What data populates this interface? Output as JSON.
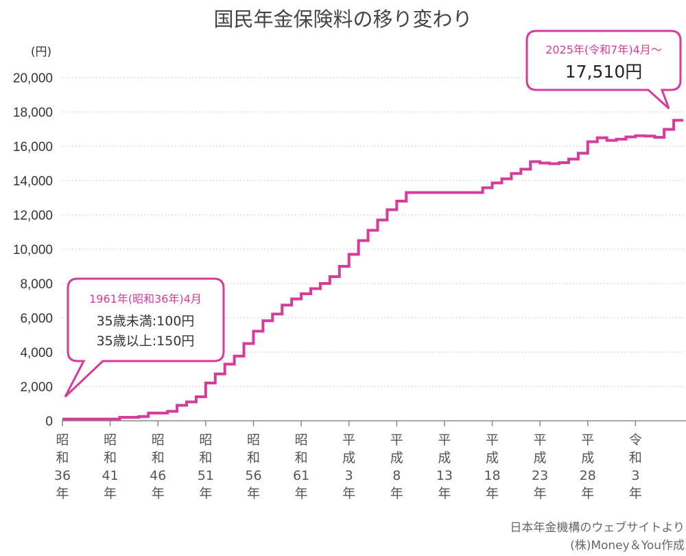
{
  "chart_data": {
    "type": "line",
    "title": "国民年金保険料の移り変わり",
    "ylabel": "(円)",
    "ylim": [
      0,
      20000
    ],
    "yticks": [
      0,
      2000,
      4000,
      6000,
      8000,
      10000,
      12000,
      14000,
      16000,
      18000,
      20000
    ],
    "ytick_labels": [
      "0",
      "2,000",
      "4,000",
      "6,000",
      "8,000",
      "10,000",
      "12,000",
      "14,000",
      "16,000",
      "18,000",
      "20,000"
    ],
    "xlim": [
      1961,
      2026
    ],
    "xticks": [
      {
        "year": 1961,
        "label": [
          "昭",
          "和",
          "36",
          "年"
        ]
      },
      {
        "year": 1966,
        "label": [
          "昭",
          "和",
          "41",
          "年"
        ]
      },
      {
        "year": 1971,
        "label": [
          "昭",
          "和",
          "46",
          "年"
        ]
      },
      {
        "year": 1976,
        "label": [
          "昭",
          "和",
          "51",
          "年"
        ]
      },
      {
        "year": 1981,
        "label": [
          "昭",
          "和",
          "56",
          "年"
        ]
      },
      {
        "year": 1986,
        "label": [
          "昭",
          "和",
          "61",
          "年"
        ]
      },
      {
        "year": 1991,
        "label": [
          "平",
          "成",
          "3",
          "年"
        ]
      },
      {
        "year": 1996,
        "label": [
          "平",
          "成",
          "8",
          "年"
        ]
      },
      {
        "year": 2001,
        "label": [
          "平",
          "成",
          "13",
          "年"
        ]
      },
      {
        "year": 2006,
        "label": [
          "平",
          "成",
          "18",
          "年"
        ]
      },
      {
        "year": 2011,
        "label": [
          "平",
          "成",
          "23",
          "年"
        ]
      },
      {
        "year": 2016,
        "label": [
          "平",
          "成",
          "28",
          "年"
        ]
      },
      {
        "year": 2021,
        "label": [
          "令",
          "和",
          "3",
          "年"
        ]
      }
    ],
    "grid": true,
    "series": [
      {
        "color": "#d63a9a",
        "step": true,
        "points": [
          [
            1961,
            100
          ],
          [
            1967,
            200
          ],
          [
            1969,
            250
          ],
          [
            1970,
            450
          ],
          [
            1972,
            550
          ],
          [
            1973,
            900
          ],
          [
            1974,
            1100
          ],
          [
            1975,
            1400
          ],
          [
            1976,
            2200
          ],
          [
            1977,
            2730
          ],
          [
            1978,
            3300
          ],
          [
            1979,
            3770
          ],
          [
            1980,
            4500
          ],
          [
            1981,
            5220
          ],
          [
            1982,
            5830
          ],
          [
            1983,
            6220
          ],
          [
            1984,
            6740
          ],
          [
            1985,
            7100
          ],
          [
            1986,
            7400
          ],
          [
            1987,
            7700
          ],
          [
            1988,
            8000
          ],
          [
            1989,
            8400
          ],
          [
            1990,
            9000
          ],
          [
            1991,
            9700
          ],
          [
            1992,
            10500
          ],
          [
            1993,
            11100
          ],
          [
            1994,
            11700
          ],
          [
            1995,
            12300
          ],
          [
            1996,
            12800
          ],
          [
            1997,
            13300
          ],
          [
            2005,
            13580
          ],
          [
            2006,
            13860
          ],
          [
            2007,
            14100
          ],
          [
            2008,
            14410
          ],
          [
            2009,
            14660
          ],
          [
            2010,
            15100
          ],
          [
            2011,
            15020
          ],
          [
            2012,
            14980
          ],
          [
            2013,
            15040
          ],
          [
            2014,
            15250
          ],
          [
            2015,
            15590
          ],
          [
            2016,
            16260
          ],
          [
            2017,
            16490
          ],
          [
            2018,
            16340
          ],
          [
            2019,
            16410
          ],
          [
            2020,
            16540
          ],
          [
            2021,
            16610
          ],
          [
            2022,
            16590
          ],
          [
            2023,
            16520
          ],
          [
            2024,
            16980
          ],
          [
            2025,
            17510
          ],
          [
            2026,
            17510
          ]
        ]
      }
    ],
    "annotations": [
      {
        "name": "start",
        "year": 1961,
        "value": 100,
        "header": "1961年(昭和36年)4月",
        "lines": [
          "35歳未満:100円",
          "35歳以上:150円"
        ]
      },
      {
        "name": "end",
        "year": 2025,
        "value": 17510,
        "header": "2025年(令和7年)4月〜",
        "lines": [
          "17,510円"
        ]
      }
    ]
  },
  "source": {
    "line1": "日本年金機構のウェブサイトより",
    "line2": "(株)Money＆You作成"
  }
}
